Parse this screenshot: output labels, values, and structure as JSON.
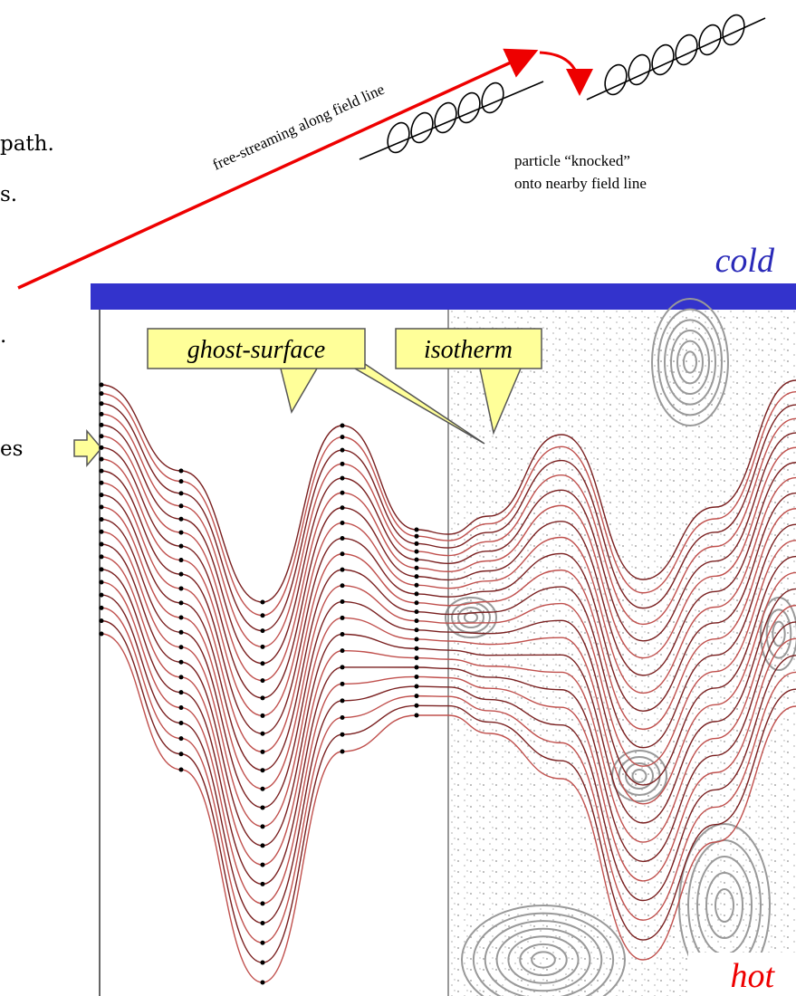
{
  "margin_text": {
    "line1": "path.",
    "line2": "s.",
    "line3": ".",
    "line4": "es"
  },
  "sketch": {
    "arrow_label": "free-streaming along field line",
    "knock_line1": "particle “knocked”",
    "knock_line2": "onto nearby field line"
  },
  "plot": {
    "top_label": "cold",
    "bottom_label": "hot",
    "callout_left": "ghost-surface",
    "callout_right": "isotherm"
  }
}
